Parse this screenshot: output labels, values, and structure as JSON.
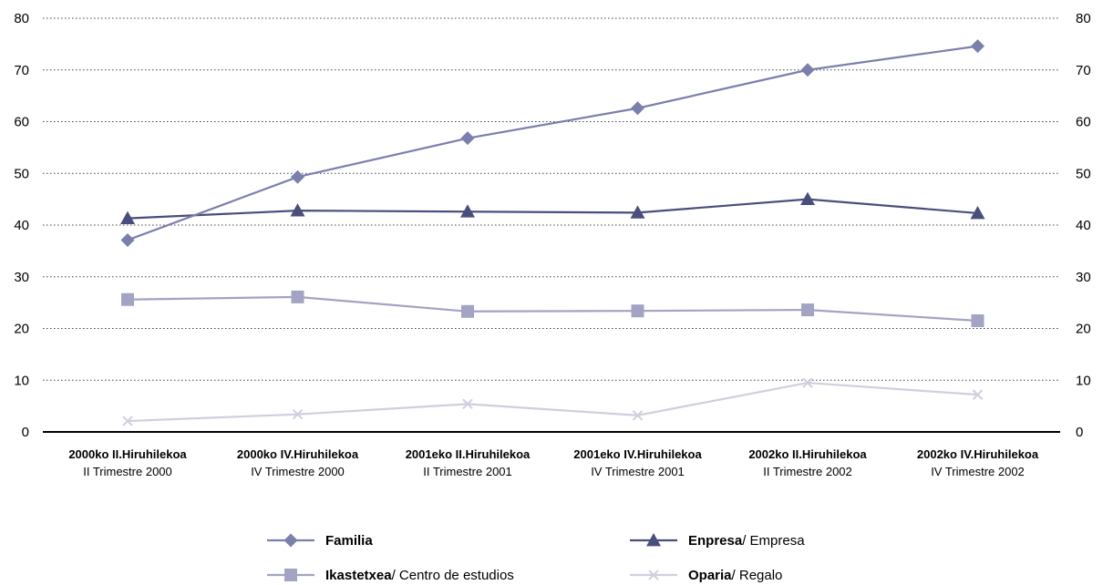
{
  "chart_data": {
    "type": "line",
    "title": "",
    "xlabel": "",
    "ylabel": "",
    "ylim": [
      0,
      80
    ],
    "yticks": [
      0,
      10,
      20,
      30,
      40,
      50,
      60,
      70,
      80
    ],
    "ytick_labels": [
      "0",
      "10",
      "20",
      "30",
      "40",
      "50",
      "60",
      "70",
      "80"
    ],
    "secondary_axis": "right, same scale",
    "grid": "horizontal dotted",
    "legend_position": "bottom",
    "categories": [
      {
        "basque": "2000ko II.Hiruhilekoa",
        "spanish": "II Trimestre 2000"
      },
      {
        "basque": "2000ko IV.Hiruhilekoa",
        "spanish": "IV Trimestre 2000"
      },
      {
        "basque": "2001eko II.Hiruhilekoa",
        "spanish": "II Trimestre 2001"
      },
      {
        "basque": "2001eko IV.Hiruhilekoa",
        "spanish": "IV Trimestre 2001"
      },
      {
        "basque": "2002ko II.Hiruhilekoa",
        "spanish": "II Trimestre 2002"
      },
      {
        "basque": "2002ko IV.Hiruhilekoa",
        "spanish": "IV Trimestre 2002"
      }
    ],
    "series": [
      {
        "name": "Familia",
        "name_bold": "Familia",
        "name_rest": "",
        "color": "#7b7fac",
        "marker": "diamond",
        "values": [
          37.1,
          49.3,
          56.8,
          62.6,
          70.0,
          74.6
        ]
      },
      {
        "name": "Enpresa / Empresa",
        "name_bold": "Enpresa",
        "name_rest": " / Empresa",
        "color": "#4a4e7d",
        "marker": "triangle",
        "values": [
          41.3,
          42.8,
          42.6,
          42.4,
          45.0,
          42.3
        ]
      },
      {
        "name": "Ikastetxea / Centro de estudios",
        "name_bold": "Ikastetxea",
        "name_rest": " / Centro de estudios",
        "color": "#a3a3c3",
        "marker": "square",
        "values": [
          25.6,
          26.1,
          23.3,
          23.4,
          23.6,
          21.5
        ]
      },
      {
        "name": "Oparia / Regalo",
        "name_bold": "Oparia",
        "name_rest": " / Regalo",
        "color": "#cfcfdf",
        "marker": "x",
        "values": [
          2.1,
          3.4,
          5.4,
          3.2,
          9.5,
          7.2
        ]
      }
    ]
  }
}
